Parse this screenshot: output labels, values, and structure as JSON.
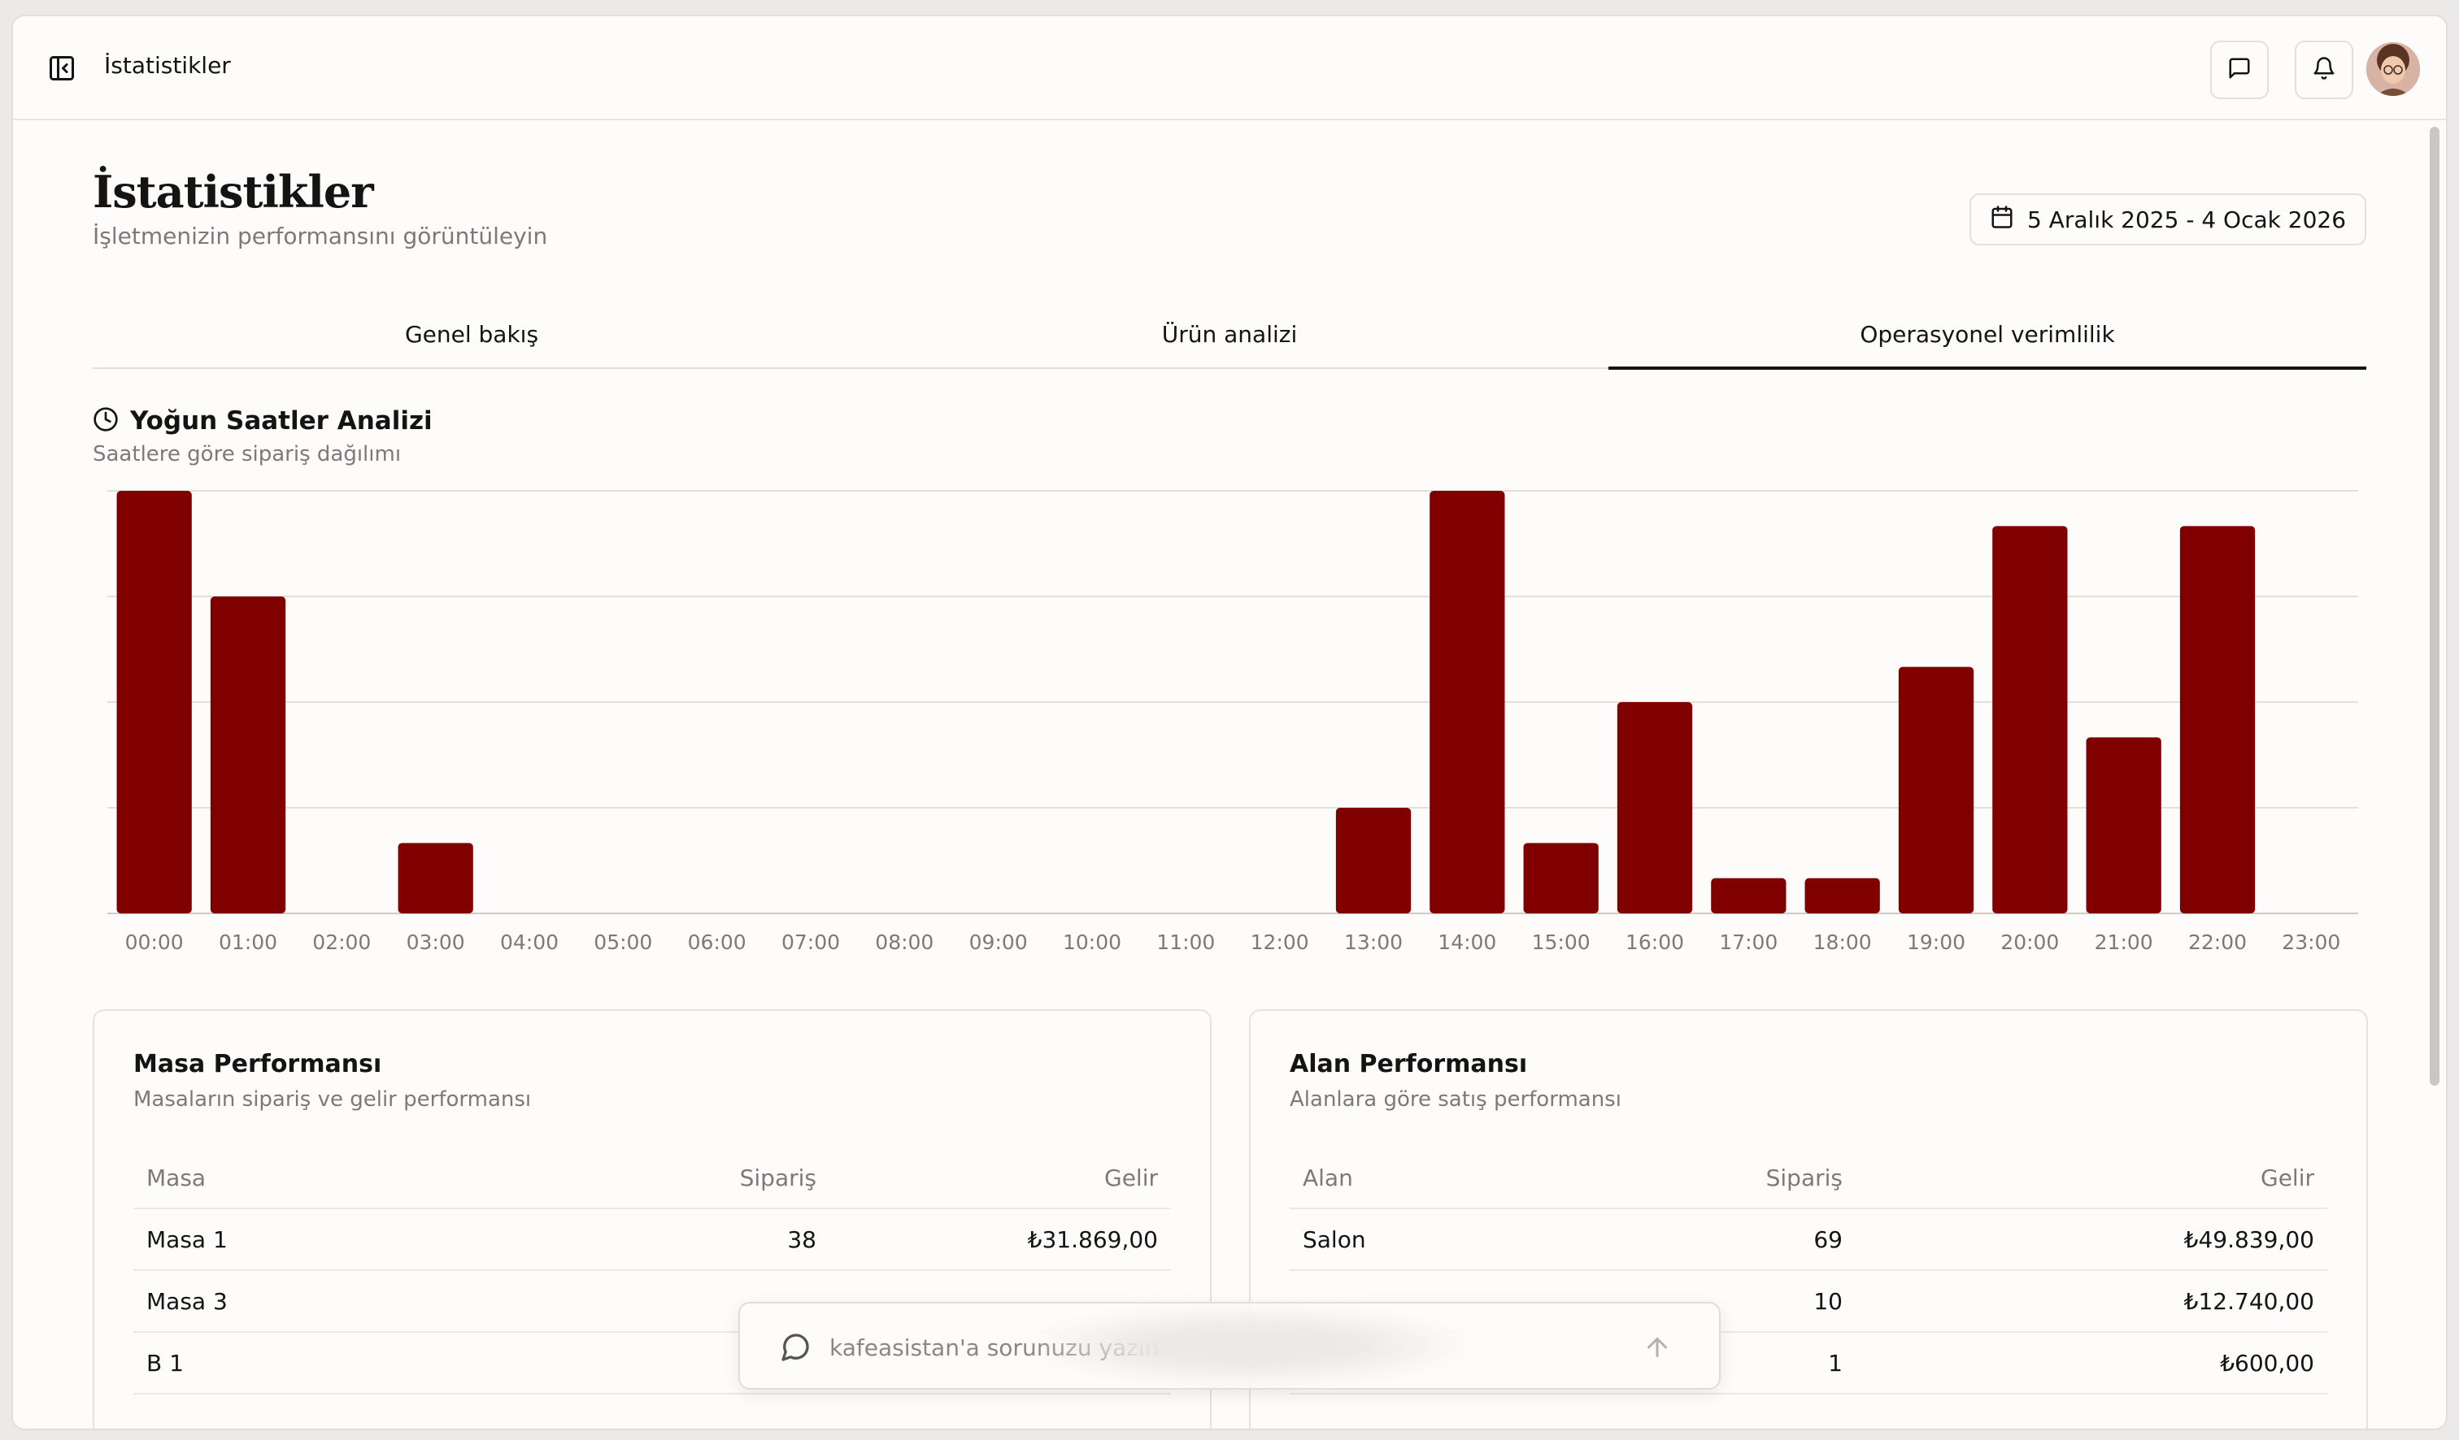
{
  "topbar": {
    "title": "İstatistikler"
  },
  "header": {
    "title": "İstatistikler",
    "subtitle": "İşletmenizin performansını görüntüleyin",
    "date_range": "5 Aralık 2025 - 4 Ocak 2026"
  },
  "tabs": [
    {
      "label": "Genel bakış",
      "active": false
    },
    {
      "label": "Ürün analizi",
      "active": false
    },
    {
      "label": "Operasyonel verimlilik",
      "active": true
    }
  ],
  "peak_hours": {
    "title": "Yoğun Saatler Analizi",
    "subtitle": "Saatlere göre sipariş dağılımı"
  },
  "chart_data": {
    "type": "bar",
    "title": "Yoğun Saatler Analizi",
    "subtitle": "Saatlere göre sipariş dağılımı",
    "categories": [
      "00:00",
      "01:00",
      "02:00",
      "03:00",
      "04:00",
      "05:00",
      "06:00",
      "07:00",
      "08:00",
      "09:00",
      "10:00",
      "11:00",
      "12:00",
      "13:00",
      "14:00",
      "15:00",
      "16:00",
      "17:00",
      "18:00",
      "19:00",
      "20:00",
      "21:00",
      "22:00",
      "23:00"
    ],
    "values": [
      12,
      9,
      0,
      2,
      0,
      0,
      0,
      0,
      0,
      0,
      0,
      0,
      0,
      3,
      12,
      2,
      6,
      1,
      1,
      7,
      11,
      5,
      11,
      0
    ],
    "ylim": [
      0,
      12
    ],
    "grid": true,
    "bar_color": "#800000"
  },
  "tables": {
    "masa": {
      "title": "Masa Performansı",
      "subtitle": "Masaların sipariş ve gelir performansı",
      "columns": [
        "Masa",
        "Sipariş",
        "Gelir"
      ],
      "rows": [
        [
          "Masa 1",
          "38",
          "₺31.869,00"
        ],
        [
          "Masa 3",
          "",
          ""
        ],
        [
          "B 1",
          "",
          ""
        ]
      ]
    },
    "alan": {
      "title": "Alan Performansı",
      "subtitle": "Alanlara göre satış performansı",
      "columns": [
        "Alan",
        "Sipariş",
        "Gelir"
      ],
      "rows": [
        [
          "Salon",
          "69",
          "₺49.839,00"
        ],
        [
          "",
          "10",
          "₺12.740,00"
        ],
        [
          "",
          "1",
          "₺600,00"
        ]
      ]
    }
  },
  "chat": {
    "placeholder": "kafeasistan'a sorunuzu yazın"
  },
  "colors": {
    "accent": "#800000",
    "background": "#fdfcfa",
    "muted_text": "#7d7a76"
  },
  "icons": {
    "sidebar_toggle": "sidebar-toggle-icon",
    "messages": "message-square-icon",
    "notifications": "bell-icon",
    "calendar": "calendar-icon",
    "clock": "clock-icon",
    "chat": "chat-bubble-icon",
    "send": "arrow-up-icon"
  }
}
